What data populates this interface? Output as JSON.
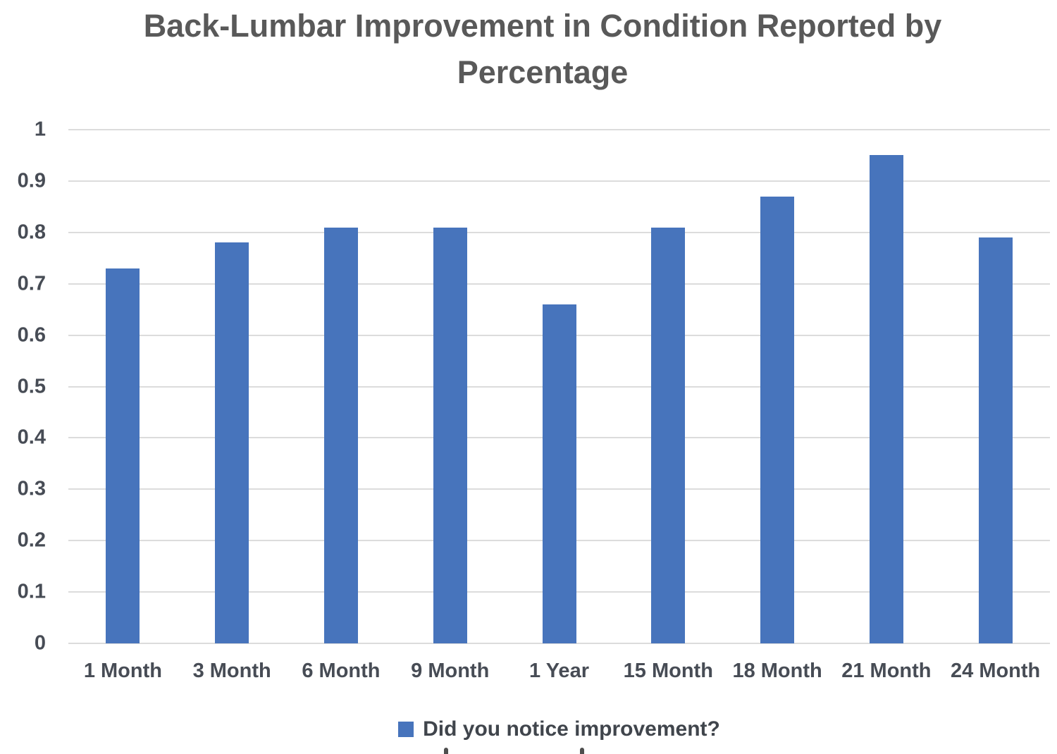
{
  "chart_data": {
    "type": "bar",
    "title": "Back-Lumbar Improvement in Condition Reported by Percentage",
    "categories": [
      "1 Month",
      "3 Month",
      "6 Month",
      "9 Month",
      "1 Year",
      "15 Month",
      "18 Month",
      "21 Month",
      "24 Month"
    ],
    "values": [
      0.73,
      0.78,
      0.81,
      0.81,
      0.66,
      0.81,
      0.87,
      0.95,
      0.79
    ],
    "legend": [
      "Did you notice improvement?"
    ],
    "legend_position": "bottom",
    "xlabel": "",
    "ylabel": "",
    "ylim": [
      0,
      1
    ],
    "ytick_step": 0.1,
    "ytick_labels": [
      "0",
      "0.1",
      "0.2",
      "0.3",
      "0.4",
      "0.5",
      "0.6",
      "0.7",
      "0.8",
      "0.9",
      "1"
    ],
    "grid": true,
    "bar_color": "#4774bc",
    "gridline_color": "#dcdcdc",
    "axis_text_color": "#474c55",
    "title_color": "#595959",
    "legend_text_color": "#40454c"
  }
}
